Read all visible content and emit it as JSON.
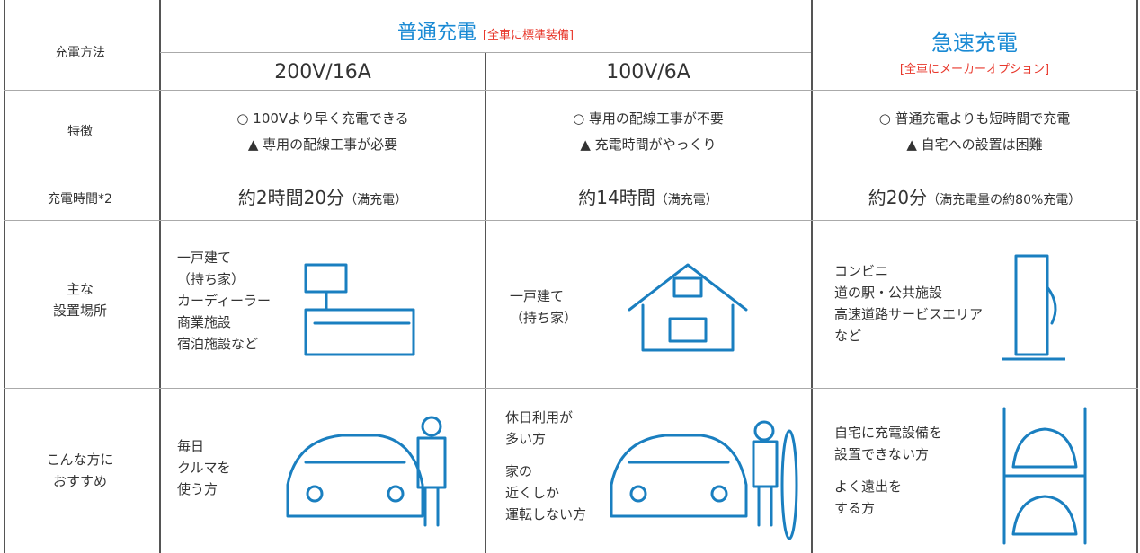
{
  "header": {
    "method_label": "充電方法",
    "normal": {
      "title": "普通充電",
      "note": "[全車に標準装備]",
      "sub": [
        "200V/16A",
        "100V/6A"
      ]
    },
    "quick": {
      "title": "急速充電",
      "note": "[全車にメーカーオプション]"
    }
  },
  "features": {
    "label": "特徴",
    "cells": [
      [
        "○ 100Vより早く充電できる",
        "▲ 専用の配線工事が必要"
      ],
      [
        "○ 専用の配線工事が不要",
        "▲ 充電時間がやっくり"
      ],
      [
        "○ 普通充電よりも短時間で充電",
        "▲ 自宅への設置は困難"
      ]
    ]
  },
  "time": {
    "label": "充電時間*2",
    "cells": [
      {
        "main": "約2時間20分",
        "note": "（満充電）"
      },
      {
        "main": "約14時間",
        "note": "（満充電）"
      },
      {
        "main": "約20分",
        "note": "（満充電量の約80%充電）"
      }
    ]
  },
  "places": {
    "label": [
      "主な",
      "設置場所"
    ],
    "cells": [
      [
        "一戸建て",
        "（持ち家）",
        "カーディーラー",
        "商業施設",
        "宿泊施設など"
      ],
      [
        "一戸建て",
        "（持ち家）"
      ],
      [
        "コンビニ",
        "道の駅・公共施設",
        "高速道路サービスエリア",
        "など"
      ]
    ]
  },
  "recommend": {
    "label": [
      "こんな方に",
      "おすすめ"
    ],
    "cells": [
      [
        [
          "毎日",
          "クルマを",
          "使う方"
        ]
      ],
      [
        [
          "休日利用が",
          "多い方"
        ],
        [
          "家の",
          "近くしか",
          "運転しない方"
        ]
      ],
      [
        [
          "自宅に充電設備を",
          "設置できない方"
        ],
        [
          "よく遠出を",
          "する方"
        ]
      ]
    ]
  }
}
